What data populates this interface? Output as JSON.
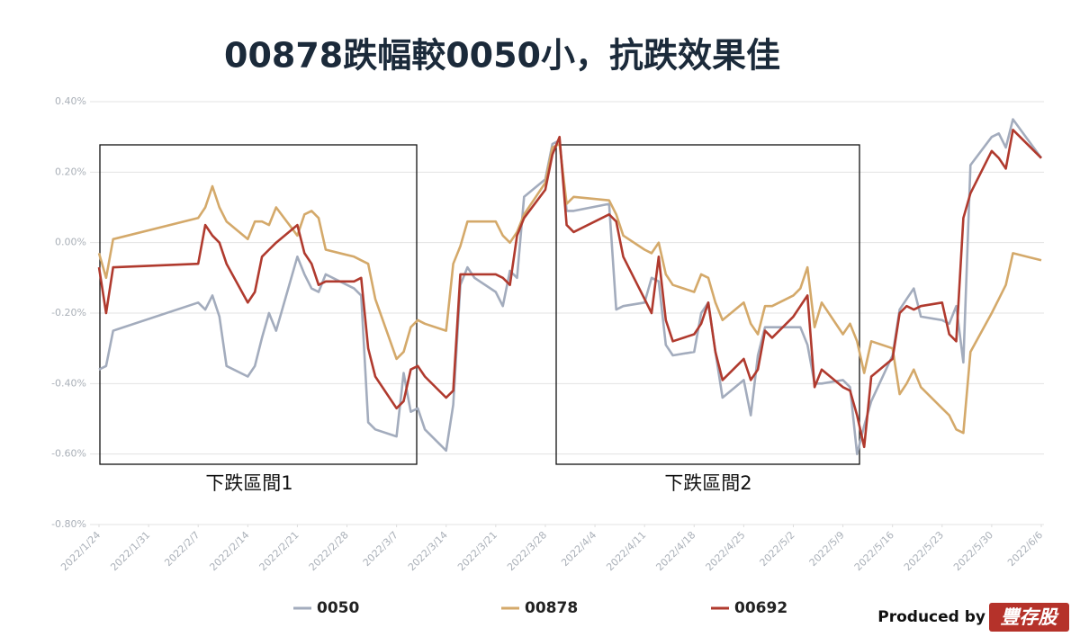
{
  "chart_data": {
    "type": "line",
    "title": "00878跌幅較0050小，抗跌效果佳",
    "x": [
      "2022/1/24",
      "2022/1/25",
      "2022/1/26",
      "2022/2/7",
      "2022/2/8",
      "2022/2/9",
      "2022/2/10",
      "2022/2/11",
      "2022/2/14",
      "2022/2/15",
      "2022/2/16",
      "2022/2/17",
      "2022/2/18",
      "2022/2/21",
      "2022/2/22",
      "2022/2/23",
      "2022/2/24",
      "2022/2/25",
      "2022/3/1",
      "2022/3/2",
      "2022/3/3",
      "2022/3/4",
      "2022/3/7",
      "2022/3/8",
      "2022/3/9",
      "2022/3/10",
      "2022/3/11",
      "2022/3/14",
      "2022/3/15",
      "2022/3/16",
      "2022/3/17",
      "2022/3/18",
      "2022/3/21",
      "2022/3/22",
      "2022/3/23",
      "2022/3/24",
      "2022/3/25",
      "2022/3/28",
      "2022/3/29",
      "2022/3/30",
      "2022/3/31",
      "2022/4/1",
      "2022/4/6",
      "2022/4/7",
      "2022/4/8",
      "2022/4/11",
      "2022/4/12",
      "2022/4/13",
      "2022/4/14",
      "2022/4/15",
      "2022/4/18",
      "2022/4/19",
      "2022/4/20",
      "2022/4/21",
      "2022/4/22",
      "2022/4/25",
      "2022/4/26",
      "2022/4/27",
      "2022/4/28",
      "2022/4/29",
      "2022/5/2",
      "2022/5/3",
      "2022/5/4",
      "2022/5/5",
      "2022/5/6",
      "2022/5/9",
      "2022/5/10",
      "2022/5/11",
      "2022/5/12",
      "2022/5/13",
      "2022/5/16",
      "2022/5/17",
      "2022/5/18",
      "2022/5/19",
      "2022/5/20",
      "2022/5/23",
      "2022/5/24",
      "2022/5/25",
      "2022/5/26",
      "2022/5/27",
      "2022/5/30",
      "2022/5/31",
      "2022/6/1",
      "2022/6/2",
      "2022/6/6"
    ],
    "series": [
      {
        "name": "0050",
        "color": "#a3acbd",
        "values": [
          -0.36,
          -0.35,
          -0.25,
          -0.17,
          -0.19,
          -0.15,
          -0.21,
          -0.35,
          -0.38,
          -0.35,
          -0.27,
          -0.2,
          -0.25,
          -0.04,
          -0.09,
          -0.13,
          -0.14,
          -0.09,
          -0.13,
          -0.15,
          -0.51,
          -0.53,
          -0.55,
          -0.37,
          -0.48,
          -0.47,
          -0.53,
          -0.59,
          -0.46,
          -0.12,
          -0.07,
          -0.1,
          -0.14,
          -0.18,
          -0.08,
          -0.1,
          0.13,
          0.18,
          0.28,
          0.29,
          0.09,
          0.09,
          0.11,
          -0.19,
          -0.18,
          -0.17,
          -0.1,
          -0.11,
          -0.29,
          -0.32,
          -0.31,
          -0.2,
          -0.17,
          -0.31,
          -0.44,
          -0.39,
          -0.49,
          -0.32,
          -0.24,
          -0.24,
          -0.24,
          -0.24,
          -0.29,
          -0.4,
          -0.4,
          -0.39,
          -0.41,
          -0.6,
          -0.52,
          -0.45,
          -0.32,
          -0.19,
          -0.16,
          -0.13,
          -0.21,
          -0.22,
          -0.23,
          -0.18,
          -0.34,
          0.22,
          0.3,
          0.31,
          0.27,
          0.35,
          0.24
        ]
      },
      {
        "name": "00878",
        "color": "#d4a96a",
        "values": [
          -0.03,
          -0.1,
          0.01,
          0.07,
          0.1,
          0.16,
          0.1,
          0.06,
          0.01,
          0.06,
          0.06,
          0.05,
          0.1,
          0.02,
          0.08,
          0.09,
          0.07,
          -0.02,
          -0.04,
          -0.05,
          -0.06,
          -0.16,
          -0.33,
          -0.31,
          -0.24,
          -0.22,
          -0.23,
          -0.25,
          -0.06,
          -0.01,
          0.06,
          0.06,
          0.06,
          0.02,
          0.0,
          0.03,
          0.08,
          0.17,
          0.27,
          0.28,
          0.11,
          0.13,
          0.12,
          0.08,
          0.02,
          -0.02,
          -0.03,
          0.0,
          -0.09,
          -0.12,
          -0.14,
          -0.09,
          -0.1,
          -0.17,
          -0.22,
          -0.17,
          -0.23,
          -0.26,
          -0.18,
          -0.18,
          -0.15,
          -0.13,
          -0.07,
          -0.24,
          -0.17,
          -0.26,
          -0.23,
          -0.28,
          -0.37,
          -0.28,
          -0.3,
          -0.43,
          -0.4,
          -0.36,
          -0.41,
          -0.47,
          -0.49,
          -0.53,
          -0.54,
          -0.31,
          -0.2,
          -0.16,
          -0.12,
          -0.03,
          -0.05
        ]
      },
      {
        "name": "00692",
        "color": "#b03a2e",
        "values": [
          -0.07,
          -0.2,
          -0.07,
          -0.06,
          0.05,
          0.02,
          0.0,
          -0.06,
          -0.17,
          -0.14,
          -0.04,
          -0.02,
          0.0,
          0.05,
          -0.03,
          -0.06,
          -0.12,
          -0.11,
          -0.11,
          -0.1,
          -0.3,
          -0.38,
          -0.47,
          -0.45,
          -0.36,
          -0.35,
          -0.38,
          -0.44,
          -0.42,
          -0.09,
          -0.09,
          -0.09,
          -0.09,
          -0.1,
          -0.12,
          0.02,
          0.07,
          0.15,
          0.25,
          0.3,
          0.05,
          0.03,
          0.08,
          0.06,
          -0.04,
          -0.16,
          -0.2,
          -0.04,
          -0.22,
          -0.28,
          -0.26,
          -0.23,
          -0.17,
          -0.31,
          -0.39,
          -0.33,
          -0.39,
          -0.36,
          -0.25,
          -0.27,
          -0.21,
          -0.18,
          -0.15,
          -0.41,
          -0.36,
          -0.41,
          -0.42,
          -0.49,
          -0.58,
          -0.38,
          -0.33,
          -0.2,
          -0.18,
          -0.19,
          -0.18,
          -0.17,
          -0.26,
          -0.28,
          0.07,
          0.14,
          0.26,
          0.24,
          0.21,
          0.32,
          0.24
        ]
      }
    ],
    "ylim": [
      -0.8,
      0.4
    ],
    "yticks": [
      {
        "value": 0.4,
        "label": "0.40%"
      },
      {
        "value": 0.2,
        "label": "0.20%"
      },
      {
        "value": 0,
        "label": "0.00%"
      },
      {
        "value": -0.2,
        "label": "-0.20%"
      },
      {
        "value": -0.4,
        "label": "-0.40%"
      },
      {
        "value": -0.6,
        "label": "-0.60%"
      },
      {
        "value": -0.8,
        "label": "-0.80%"
      }
    ],
    "xticks": [
      "2022/1/24",
      "2022/1/31",
      "2022/2/7",
      "2022/2/14",
      "2022/2/21",
      "2022/2/28",
      "2022/3/7",
      "2022/3/14",
      "2022/3/21",
      "2022/3/28",
      "2022/4/4",
      "2022/4/11",
      "2022/4/18",
      "2022/4/25",
      "2022/5/2",
      "2022/5/9",
      "2022/5/16",
      "2022/5/23",
      "2022/5/30",
      "2022/6/6"
    ],
    "grid": true,
    "annotations": [
      "下跌區間1",
      "下跌區間2"
    ],
    "credit": {
      "text": "Produced by",
      "brand": "豐存股"
    }
  }
}
